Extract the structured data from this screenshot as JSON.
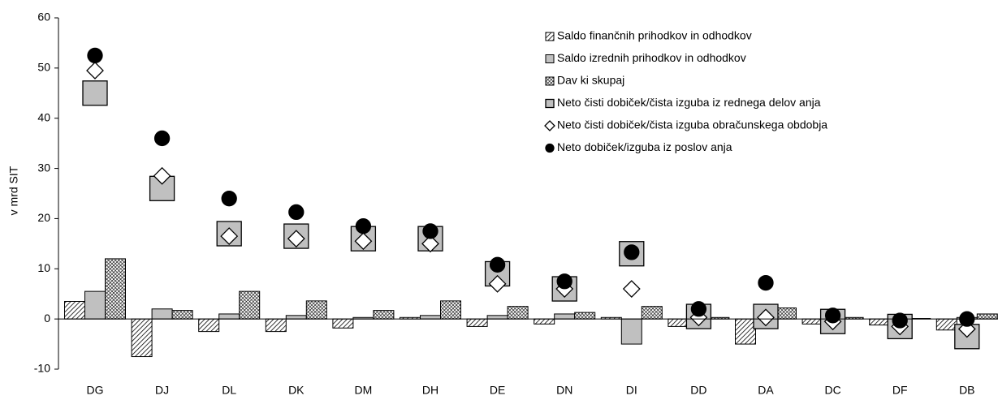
{
  "chart_data": {
    "type": "bar",
    "y_label": "v mrd SIT",
    "categories": [
      "DG",
      "DJ",
      "DL",
      "DK",
      "DM",
      "DH",
      "DE",
      "DN",
      "DI",
      "DD",
      "DA",
      "DC",
      "DF",
      "DB"
    ],
    "ylim": [
      -10,
      60
    ],
    "yticks": [
      -10,
      0,
      10,
      20,
      30,
      40,
      50,
      60
    ],
    "legend": "upper right",
    "series": [
      {
        "name": "Saldo finančnih prihodkov in odhodkov",
        "type": "bar",
        "pattern": "diagonal",
        "color": "#000000",
        "values": [
          3.5,
          -7.5,
          -2.5,
          -2.5,
          -1.8,
          0.3,
          -1.5,
          -1,
          0.3,
          -1.5,
          -5,
          -1,
          -1.2,
          -2.2
        ]
      },
      {
        "name": "Saldo izrednih prihodkov in odhodkov",
        "type": "bar",
        "pattern": "solid",
        "color": "#c0c0c0",
        "values": [
          5.5,
          2,
          1,
          0.7,
          0.3,
          0.7,
          0.7,
          1,
          -5,
          0.3,
          0.3,
          0.3,
          0.3,
          0.3
        ]
      },
      {
        "name": "Dav ki skupaj",
        "type": "bar",
        "pattern": "crosshatch",
        "color": "#000000",
        "values": [
          12,
          1.7,
          5.5,
          3.6,
          1.7,
          3.6,
          2.5,
          1.3,
          2.5,
          0.3,
          2.2,
          0.3,
          0.1,
          1
        ]
      },
      {
        "name": "Neto čisti dobiček/čista izguba iz rednega delov anja",
        "type": "scatter",
        "marker": "square",
        "color": "#c0c0c0",
        "values": [
          45,
          26,
          17,
          16.5,
          16,
          16,
          9,
          6,
          13,
          0.5,
          0.5,
          -0.5,
          -1.5,
          -3.5
        ]
      },
      {
        "name": "Neto čisti dobiček/čista izguba obračunskega obdobja",
        "type": "scatter",
        "marker": "diamond",
        "color": "#ffffff",
        "values": [
          49.5,
          28.5,
          16.5,
          16,
          15.5,
          15,
          7,
          6,
          6,
          0.3,
          0.3,
          -0.5,
          -1.5,
          -2
        ]
      },
      {
        "name": "Neto dobiček/izguba iz poslov anja",
        "type": "scatter",
        "marker": "circle",
        "color": "#000000",
        "values": [
          52.5,
          36,
          24,
          21.3,
          18.5,
          17.5,
          10.8,
          7.5,
          13.3,
          2,
          7.2,
          0.7,
          -0.3,
          0
        ]
      }
    ]
  }
}
